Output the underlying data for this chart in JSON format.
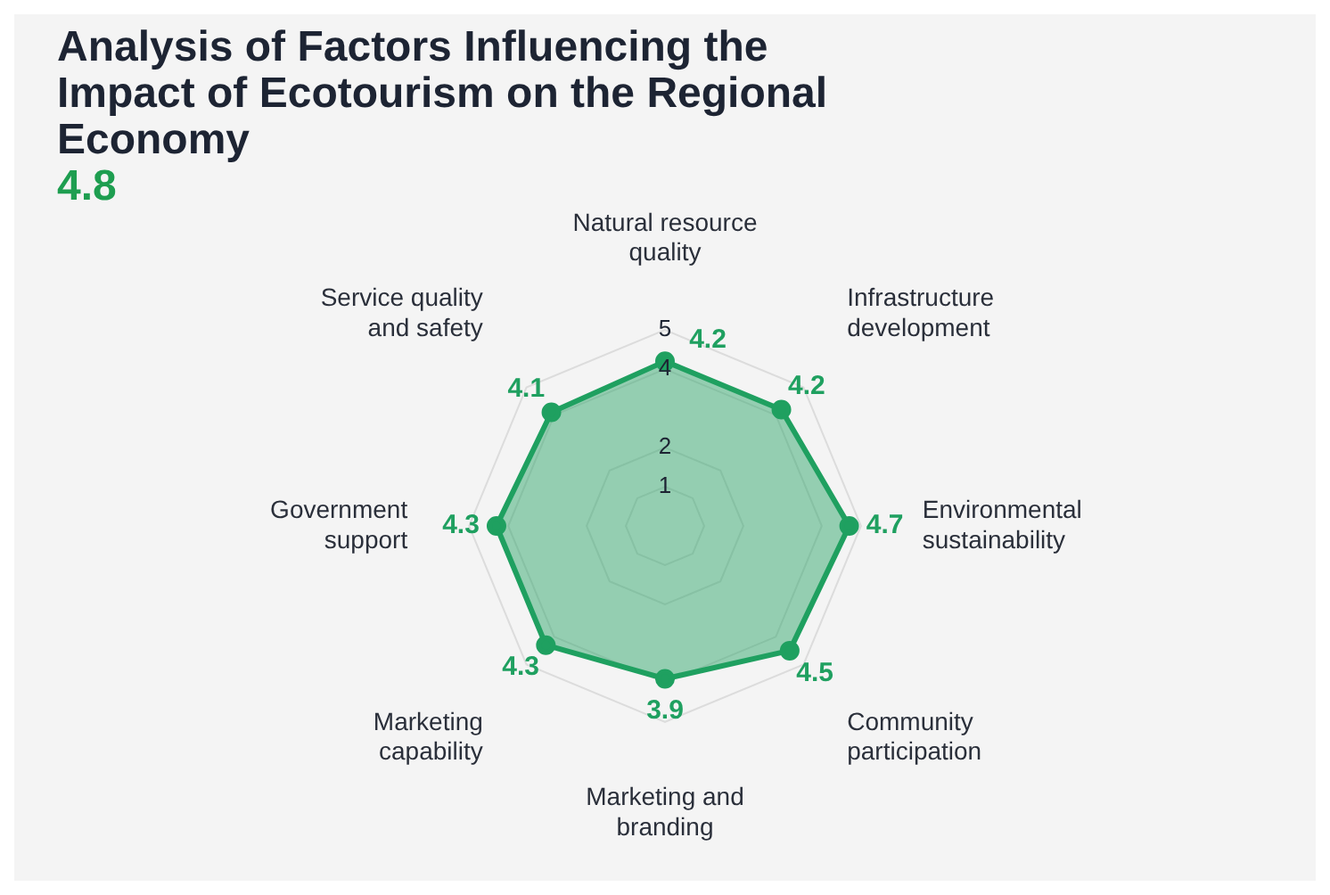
{
  "chart_data": {
    "type": "radar",
    "title": "Analysis of Factors Influencing the Impact of Ecotourism on the Regional Economy",
    "annotations": [
      "4.8"
    ],
    "categories": [
      "Natural resource quality",
      "Infrastructure development",
      "Environmental sustainability",
      "Community participation",
      "Marketing and branding",
      "Marketing capability",
      "Government support",
      "Service quality and safety"
    ],
    "series": [
      {
        "color": "#1fa060",
        "values": [
          4.2,
          4.2,
          4.7,
          4.5,
          3.9,
          4.3,
          4.3,
          4.1
        ]
      }
    ],
    "ylim": [
      0,
      5
    ],
    "yticks": [
      1,
      2,
      4,
      5
    ],
    "data_labels": true,
    "grid": true,
    "marker": "circle",
    "legend": false
  }
}
